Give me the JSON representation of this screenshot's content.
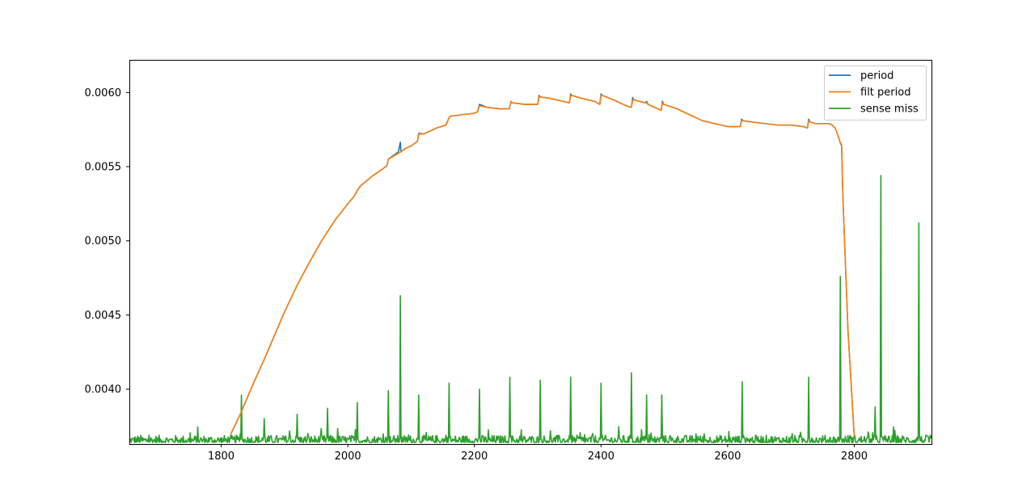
{
  "chart_data": {
    "type": "line",
    "title": "",
    "xlabel": "",
    "ylabel": "",
    "xlim": [
      1655,
      2922
    ],
    "ylim": [
      0.00363,
      0.00622
    ],
    "grid": false,
    "legend_position": "top-right",
    "xticks": [
      {
        "value": 1800,
        "label": "1800"
      },
      {
        "value": 2000,
        "label": "2000"
      },
      {
        "value": 2200,
        "label": "2200"
      },
      {
        "value": 2400,
        "label": "2400"
      },
      {
        "value": 2600,
        "label": "2600"
      },
      {
        "value": 2800,
        "label": "2800"
      }
    ],
    "yticks": [
      {
        "value": 0.004,
        "label": "0.0040"
      },
      {
        "value": 0.0045,
        "label": "0.0045"
      },
      {
        "value": 0.005,
        "label": "0.0050"
      },
      {
        "value": 0.0055,
        "label": "0.0055"
      },
      {
        "value": 0.006,
        "label": "0.0060"
      }
    ],
    "series": [
      {
        "name": "period",
        "color": "#1f77b4",
        "x": [
          1815,
          1830,
          1850,
          1870,
          1880,
          1900,
          1920,
          1940,
          1960,
          1980,
          2000,
          2010,
          2015,
          2020,
          2040,
          2060,
          2062,
          2064,
          2080,
          2083,
          2084,
          2090,
          2100,
          2110,
          2112,
          2120,
          2140,
          2155,
          2160,
          2162,
          2180,
          2200,
          2205,
          2208,
          2220,
          2240,
          2255,
          2258,
          2260,
          2280,
          2300,
          2302,
          2304,
          2320,
          2340,
          2350,
          2352,
          2354,
          2370,
          2390,
          2398,
          2400,
          2402,
          2420,
          2440,
          2448,
          2450,
          2452,
          2470,
          2472,
          2474,
          2490,
          2495,
          2497,
          2499,
          2520,
          2540,
          2560,
          2580,
          2600,
          2620,
          2622,
          2624,
          2640,
          2660,
          2680,
          2700,
          2720,
          2726,
          2728,
          2730,
          2740,
          2760,
          2765,
          2770,
          2775,
          2778,
          2780,
          2782,
          2790,
          2800
        ],
        "values": [
          0.003695,
          0.00383,
          0.00403,
          0.00422,
          0.00432,
          0.00452,
          0.0047,
          0.00486,
          0.00501,
          0.00514,
          0.00525,
          0.0053,
          0.00534,
          0.00537,
          0.00544,
          0.0055,
          0.00551,
          0.00555,
          0.0056,
          0.005665,
          0.0056,
          0.00562,
          0.00564,
          0.00567,
          0.005725,
          0.00572,
          0.00576,
          0.00578,
          0.00583,
          0.00584,
          0.00585,
          0.00586,
          0.00587,
          0.00592,
          0.0059,
          0.00589,
          0.00589,
          0.00594,
          0.00593,
          0.00592,
          0.00592,
          0.00598,
          0.00597,
          0.00596,
          0.00594,
          0.00593,
          0.00599,
          0.00598,
          0.00596,
          0.00594,
          0.00592,
          0.00599,
          0.00598,
          0.00595,
          0.00591,
          0.0059,
          0.005965,
          0.00595,
          0.00593,
          0.00594,
          0.00592,
          0.00589,
          0.00588,
          0.00594,
          0.00592,
          0.00589,
          0.00585,
          0.00581,
          0.00579,
          0.00577,
          0.00577,
          0.00582,
          0.00581,
          0.0058,
          0.00579,
          0.00578,
          0.00578,
          0.00577,
          0.00576,
          0.00582,
          0.0058,
          0.00579,
          0.00579,
          0.00578,
          0.00576,
          0.0057,
          0.00566,
          0.00564,
          0.0053,
          0.0044,
          0.00368
        ]
      },
      {
        "name": "filt period",
        "color": "#ff7f0e",
        "x": [
          1815,
          1830,
          1850,
          1870,
          1880,
          1900,
          1920,
          1940,
          1960,
          1980,
          2000,
          2010,
          2015,
          2020,
          2040,
          2060,
          2062,
          2064,
          2080,
          2084,
          2090,
          2100,
          2110,
          2112,
          2120,
          2140,
          2155,
          2160,
          2162,
          2180,
          2200,
          2205,
          2208,
          2220,
          2240,
          2255,
          2258,
          2260,
          2280,
          2300,
          2302,
          2304,
          2320,
          2340,
          2350,
          2352,
          2354,
          2370,
          2390,
          2398,
          2400,
          2402,
          2420,
          2440,
          2448,
          2450,
          2452,
          2470,
          2472,
          2474,
          2490,
          2495,
          2497,
          2499,
          2520,
          2540,
          2560,
          2580,
          2600,
          2620,
          2622,
          2624,
          2640,
          2660,
          2680,
          2700,
          2720,
          2726,
          2728,
          2730,
          2740,
          2760,
          2765,
          2770,
          2775,
          2778,
          2780,
          2782,
          2790,
          2800
        ],
        "values": [
          0.003695,
          0.00383,
          0.00403,
          0.00422,
          0.00432,
          0.00452,
          0.0047,
          0.00486,
          0.00501,
          0.00514,
          0.00525,
          0.0053,
          0.00534,
          0.00537,
          0.00544,
          0.0055,
          0.00551,
          0.00555,
          0.00559,
          0.0056,
          0.00562,
          0.00564,
          0.00567,
          0.00572,
          0.00572,
          0.00576,
          0.00578,
          0.00583,
          0.00584,
          0.00585,
          0.00586,
          0.00587,
          0.00591,
          0.0059,
          0.00589,
          0.00589,
          0.00594,
          0.00593,
          0.00592,
          0.00592,
          0.00597,
          0.00597,
          0.00596,
          0.00594,
          0.00593,
          0.00598,
          0.00598,
          0.00596,
          0.00594,
          0.00592,
          0.00598,
          0.00598,
          0.00595,
          0.00591,
          0.0059,
          0.00595,
          0.00595,
          0.00593,
          0.00593,
          0.00592,
          0.00589,
          0.00588,
          0.00593,
          0.00592,
          0.00589,
          0.00585,
          0.00581,
          0.00579,
          0.00577,
          0.00577,
          0.00581,
          0.00581,
          0.0058,
          0.00579,
          0.00578,
          0.00578,
          0.00577,
          0.00576,
          0.00581,
          0.0058,
          0.00579,
          0.00579,
          0.00578,
          0.00576,
          0.0057,
          0.00566,
          0.00565,
          0.0053,
          0.0044,
          0.00368
        ]
      },
      {
        "name": "sense miss",
        "color": "#2ca02c",
        "baseline": 0.00366,
        "noise": 5e-05,
        "spikes": [
          {
            "x": 1832,
            "y": 0.00396
          },
          {
            "x": 1868,
            "y": 0.0038
          },
          {
            "x": 1920,
            "y": 0.00383
          },
          {
            "x": 1968,
            "y": 0.00387
          },
          {
            "x": 2015,
            "y": 0.00391
          },
          {
            "x": 2064,
            "y": 0.00399
          },
          {
            "x": 2083,
            "y": 0.00463
          },
          {
            "x": 2112,
            "y": 0.00396
          },
          {
            "x": 2160,
            "y": 0.00404
          },
          {
            "x": 2208,
            "y": 0.004
          },
          {
            "x": 2256,
            "y": 0.00408
          },
          {
            "x": 2304,
            "y": 0.00406
          },
          {
            "x": 2352,
            "y": 0.00408
          },
          {
            "x": 2400,
            "y": 0.00404
          },
          {
            "x": 2448,
            "y": 0.00411
          },
          {
            "x": 2472,
            "y": 0.00396
          },
          {
            "x": 2496,
            "y": 0.00396
          },
          {
            "x": 2623,
            "y": 0.00405
          },
          {
            "x": 2728,
            "y": 0.00408
          },
          {
            "x": 2778,
            "y": 0.00476
          },
          {
            "x": 2833,
            "y": 0.00388
          },
          {
            "x": 2842,
            "y": 0.00544
          },
          {
            "x": 2902,
            "y": 0.00512
          }
        ]
      }
    ]
  }
}
